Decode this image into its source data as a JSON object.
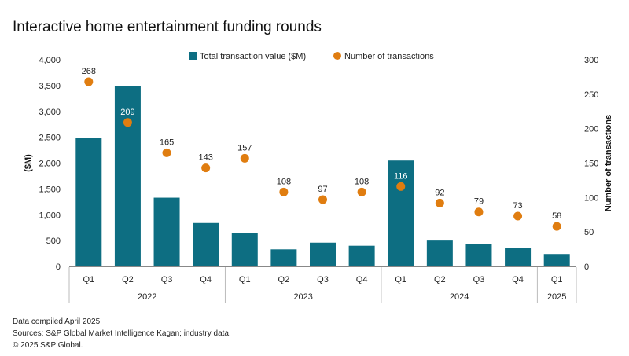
{
  "title": "Interactive home entertainment funding rounds",
  "footnotes": [
    "Data compiled April 2025.",
    "Sources: S&P Global Market Intelligence Kagan; industry data.",
    "© 2025 S&P Global."
  ],
  "colors": {
    "bar": "#0d6e82",
    "dot": "#e07d10",
    "label_inside": "#ffffff",
    "label_outside": "#222222"
  },
  "chart_data": {
    "type": "bar",
    "title": "Interactive home entertainment funding rounds",
    "categories": [
      "Q1",
      "Q2",
      "Q3",
      "Q4",
      "Q1",
      "Q2",
      "Q3",
      "Q4",
      "Q1",
      "Q2",
      "Q3",
      "Q4",
      "Q1"
    ],
    "groups": [
      {
        "label": "2022",
        "count": 4
      },
      {
        "label": "2023",
        "count": 4
      },
      {
        "label": "2024",
        "count": 4
      },
      {
        "label": "2025",
        "count": 1
      }
    ],
    "series": [
      {
        "name": "Total transaction value ($M)",
        "type": "bar",
        "axis": "left",
        "values": [
          2480,
          3490,
          1330,
          840,
          650,
          330,
          460,
          400,
          2050,
          500,
          430,
          350,
          240
        ]
      },
      {
        "name": "Number of transactions",
        "type": "scatter",
        "axis": "right",
        "values": [
          268,
          209,
          165,
          143,
          157,
          108,
          97,
          108,
          116,
          92,
          79,
          73,
          58
        ]
      }
    ],
    "ylabel": "($M)",
    "ylabel_right": "Number of transactions",
    "ylim": [
      0,
      4000
    ],
    "ylim_right": [
      0,
      300
    ],
    "yticks": [
      "4,000",
      "3,500",
      "3,000",
      "2,500",
      "2,000",
      "1,500",
      "1,000",
      "500",
      "0"
    ],
    "yticks_right": [
      "300",
      "250",
      "200",
      "150",
      "100",
      "50",
      "0"
    ],
    "legend_position": "top-center"
  }
}
